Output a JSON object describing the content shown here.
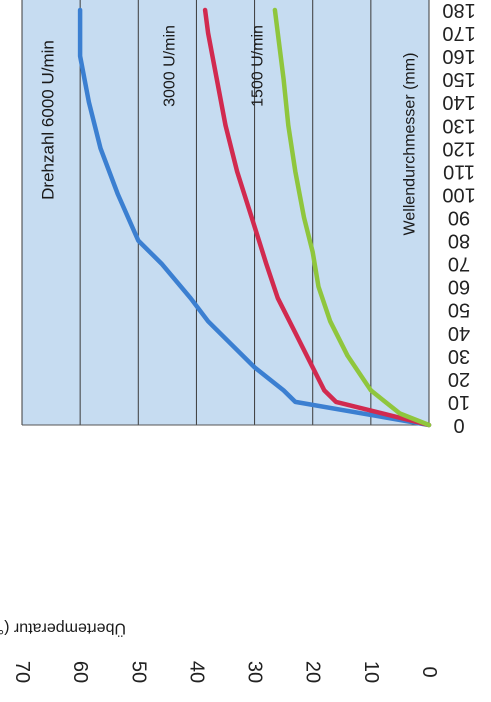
{
  "chart_data": {
    "type": "line",
    "orientation": "rotated-90-clockwise",
    "xlabel": "Wellendurchmesser (mm)",
    "ylabel": "Übertemperatur (°C)",
    "xlim": [
      0,
      180
    ],
    "ylim": [
      0,
      70
    ],
    "x_ticks": [
      0,
      10,
      20,
      30,
      40,
      50,
      60,
      70,
      80,
      90,
      100,
      110,
      120,
      130,
      140,
      150,
      160,
      170,
      180
    ],
    "y_ticks": [
      0,
      10,
      20,
      30,
      40,
      50,
      60,
      70
    ],
    "grid": true,
    "background_color": "#c6dcf1",
    "series": [
      {
        "name": "Drehzahl 6000 U/min",
        "color": "#3b7fd1",
        "x": [
          0,
          10,
          15,
          25,
          35,
          45,
          55,
          70,
          80,
          100,
          120,
          140,
          160,
          180
        ],
        "y": [
          0,
          23,
          25,
          30,
          34,
          38,
          41,
          46,
          50,
          53.5,
          56.5,
          58.5,
          60,
          60
        ]
      },
      {
        "name": "3000 U/min",
        "color": "#d12a4f",
        "x": [
          0,
          10,
          15,
          25,
          40,
          55,
          70,
          90,
          110,
          130,
          150,
          170,
          180
        ],
        "y": [
          0,
          16,
          18,
          20,
          23,
          26,
          28,
          30.5,
          33,
          35,
          36.5,
          38,
          38.5
        ]
      },
      {
        "name": "1500 U/min",
        "color": "#8fc63d",
        "x": [
          0,
          5,
          15,
          30,
          45,
          60,
          75,
          90,
          110,
          130,
          150,
          170,
          180
        ],
        "y": [
          0,
          5,
          10,
          14,
          17,
          19,
          20,
          21.5,
          23,
          24.2,
          25,
          26,
          26.5
        ]
      }
    ]
  }
}
